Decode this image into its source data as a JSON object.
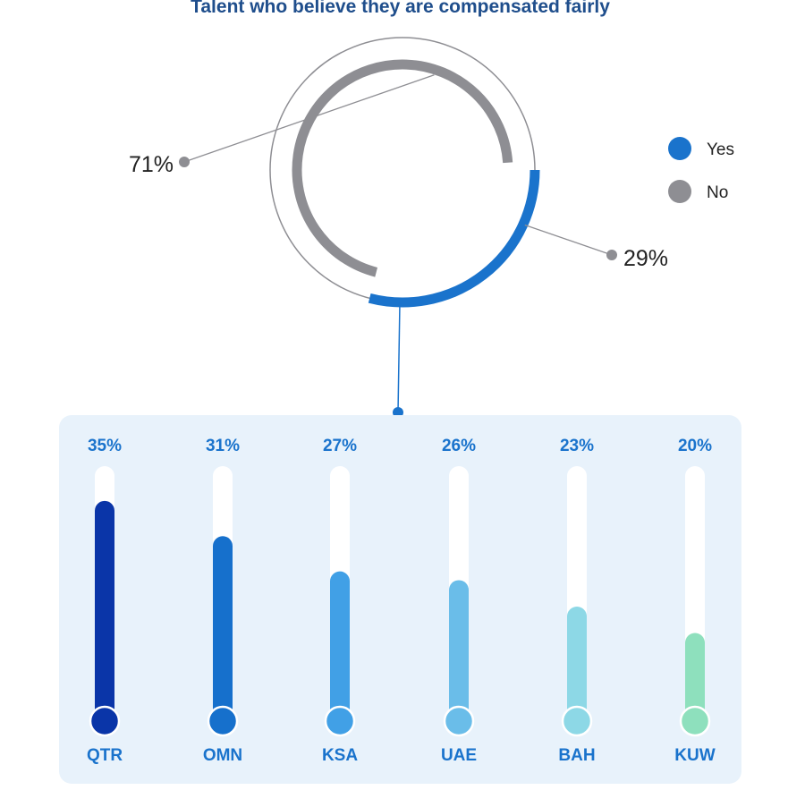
{
  "title": "Talent who believe they are compensated fairly",
  "chart_data": [
    {
      "type": "pie",
      "categories": [
        "Yes",
        "No"
      ],
      "values": [
        29,
        71
      ],
      "data_labels": [
        "29%",
        "71%"
      ],
      "legend": {
        "placement": "right",
        "entries": [
          "Yes",
          "No"
        ]
      },
      "colors": [
        "#1a73cc",
        "#8e8e93"
      ]
    },
    {
      "type": "bar",
      "categories": [
        "QTR",
        "OMN",
        "KSA",
        "UAE",
        "BAH",
        "KUW"
      ],
      "values": [
        35,
        31,
        27,
        26,
        23,
        20
      ],
      "data_labels": [
        "35%",
        "31%",
        "27%",
        "26%",
        "23%",
        "20%"
      ],
      "ylim": [
        10,
        36
      ],
      "colors": [
        "#0a35a8",
        "#1670cc",
        "#41a0e6",
        "#6abde9",
        "#8dd8e6",
        "#8ee0bd"
      ],
      "label_color": "#1a73cc"
    }
  ],
  "colors": {
    "panel_bg": "#e8f2fb",
    "track": "#ffffff",
    "outline": "#8e8e93",
    "title": "#1f4e8c"
  }
}
